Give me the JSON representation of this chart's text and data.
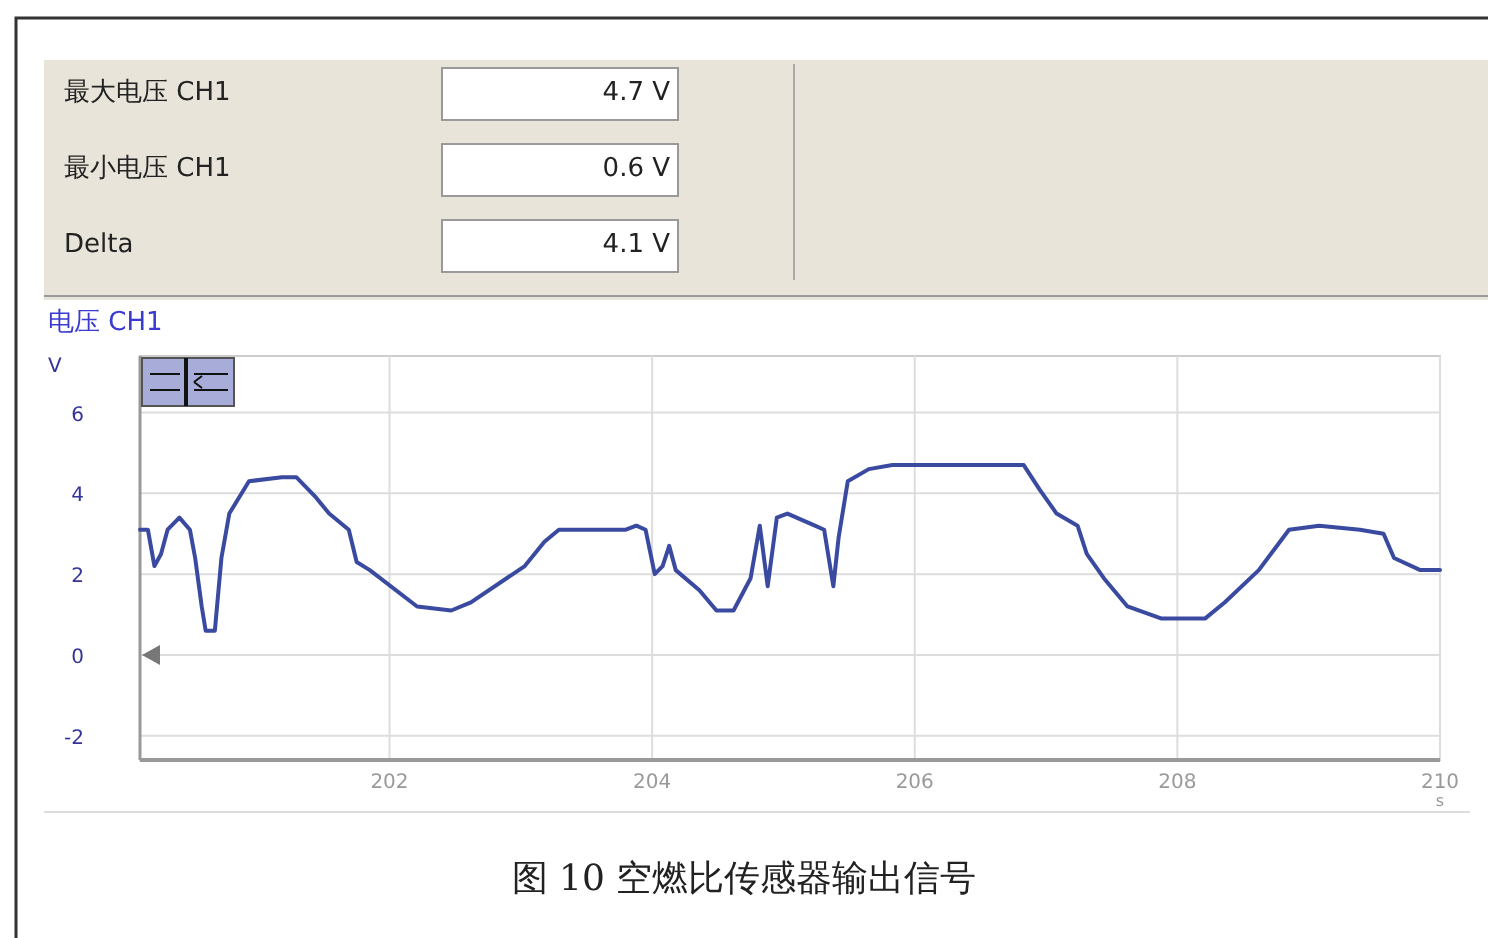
{
  "chart_data": {
    "type": "line",
    "title": "电压 CH1",
    "ylabel": "V",
    "xlabel": "s",
    "annotations": [
      "最大电压 CH1",
      "4.7 V",
      "最小电压 CH1",
      "0.6 V",
      "Delta",
      "4.1 V",
      "图 10 空燃比传感器输出信号"
    ],
    "series": [
      {
        "color": "#3a4aa0",
        "x": [
          200.1,
          200.16,
          200.21,
          200.26,
          200.31,
          200.4,
          200.48,
          200.52,
          200.57,
          200.6,
          200.67,
          200.72,
          200.78,
          200.93,
          201.18,
          201.29,
          201.44,
          201.54,
          201.69,
          201.75,
          201.85,
          202.21,
          202.47,
          202.62,
          203.03,
          203.18,
          203.29,
          203.8,
          203.88,
          203.95,
          204.02,
          204.08,
          204.13,
          204.18,
          204.36,
          204.49,
          204.62,
          204.75,
          204.82,
          204.88,
          204.95,
          205.03,
          205.24,
          205.31,
          205.38,
          205.42,
          205.49,
          205.65,
          205.83,
          206.83,
          206.95,
          207.08,
          207.24,
          207.31,
          207.44,
          207.62,
          207.88,
          208.21,
          208.36,
          208.62,
          208.85,
          209.08,
          209.39,
          209.57,
          209.65,
          209.85,
          210
        ],
        "values": [
          3.1,
          3.1,
          2.2,
          2.5,
          3.1,
          3.4,
          3.1,
          2.4,
          1.2,
          0.6,
          0.6,
          2.4,
          3.5,
          4.3,
          4.4,
          4.4,
          3.9,
          3.5,
          3.1,
          2.3,
          2.1,
          1.2,
          1.1,
          1.3,
          2.2,
          2.8,
          3.1,
          3.1,
          3.2,
          3.1,
          2.0,
          2.2,
          2.7,
          2.1,
          1.6,
          1.1,
          1.1,
          1.9,
          3.2,
          1.7,
          3.4,
          3.5,
          3.2,
          3.1,
          1.7,
          2.9,
          4.3,
          4.6,
          4.7,
          4.7,
          4.1,
          3.5,
          3.2,
          2.5,
          1.9,
          1.2,
          0.9,
          0.9,
          1.3,
          2.1,
          3.1,
          3.2,
          3.1,
          3.0,
          2.4,
          2.1,
          2.1
        ]
      }
    ],
    "xlim": [
      200.1,
      210
    ],
    "ylim": [
      -2.6,
      7.4
    ],
    "xticks": [
      202,
      204,
      206,
      208,
      210
    ],
    "yticks": [
      -2,
      0,
      2,
      4,
      6
    ],
    "grid": true,
    "marker": "none",
    "line_style": "solid"
  }
}
